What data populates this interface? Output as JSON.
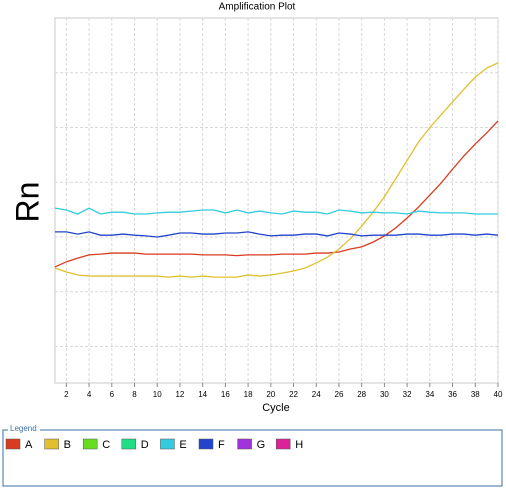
{
  "chart_data": {
    "type": "line",
    "title": "Amplification Plot",
    "x_label": "Cycle",
    "y_label": "Rn",
    "x": [
      1,
      2,
      3,
      4,
      5,
      6,
      7,
      8,
      9,
      10,
      11,
      12,
      13,
      14,
      15,
      16,
      17,
      18,
      19,
      20,
      21,
      22,
      23,
      24,
      25,
      26,
      27,
      28,
      29,
      30,
      31,
      32,
      33,
      34,
      35,
      36,
      37,
      38,
      39,
      40
    ],
    "xlim": [
      1,
      40
    ],
    "xticks": [
      2,
      4,
      6,
      8,
      10,
      12,
      14,
      16,
      18,
      20,
      22,
      24,
      26,
      28,
      30,
      32,
      34,
      36,
      38,
      40
    ],
    "ylim": [
      0,
      100
    ],
    "y_gridlines": [
      10,
      25,
      40,
      55,
      70,
      85
    ],
    "grid": true,
    "legend_title": "Legend",
    "series": [
      {
        "name": "A",
        "color": "#d83b1f",
        "values": [
          31.8,
          33.2,
          34.2,
          35.1,
          35.3,
          35.6,
          35.6,
          35.6,
          35.3,
          35.3,
          35.3,
          35.3,
          35.3,
          35.1,
          35.1,
          35.1,
          34.9,
          35.1,
          35.1,
          35.1,
          35.3,
          35.3,
          35.3,
          35.6,
          35.6,
          35.9,
          36.7,
          37.3,
          38.6,
          40.3,
          42.5,
          45.2,
          48.2,
          51.5,
          54.8,
          58.6,
          62.2,
          65.5,
          68.5,
          71.8
        ]
      },
      {
        "name": "B",
        "color": "#e0c030",
        "values": [
          31.5,
          30.4,
          29.6,
          29.3,
          29.3,
          29.3,
          29.3,
          29.3,
          29.3,
          29.3,
          29.0,
          29.3,
          29.0,
          29.3,
          29.0,
          29.0,
          29.0,
          29.6,
          29.3,
          29.6,
          30.1,
          30.7,
          31.5,
          32.9,
          34.5,
          36.7,
          39.5,
          43.0,
          46.8,
          51.0,
          56.0,
          61.0,
          66.0,
          70.0,
          73.5,
          77.0,
          80.5,
          83.8,
          86.3,
          87.7
        ]
      },
      {
        "name": "C",
        "color": "#66dd22",
        "values": [
          null,
          null,
          null,
          null,
          null,
          null,
          null,
          null,
          null,
          null,
          null,
          null,
          null,
          null,
          null,
          null,
          null,
          null,
          null,
          null,
          null,
          null,
          null,
          null,
          null,
          null,
          null,
          null,
          null,
          null,
          null,
          null,
          null,
          null,
          null,
          null,
          null,
          null,
          null,
          null
        ]
      },
      {
        "name": "D",
        "color": "#22dd88",
        "values": [
          null,
          null,
          null,
          null,
          null,
          null,
          null,
          null,
          null,
          null,
          null,
          null,
          null,
          null,
          null,
          null,
          null,
          null,
          null,
          null,
          null,
          null,
          null,
          null,
          null,
          null,
          null,
          null,
          null,
          null,
          null,
          null,
          null,
          null,
          null,
          null,
          null,
          null,
          null,
          null
        ]
      },
      {
        "name": "E",
        "color": "#33ccdd",
        "values": [
          47.9,
          47.4,
          46.3,
          47.9,
          46.3,
          46.8,
          46.8,
          46.3,
          46.3,
          46.6,
          46.8,
          46.8,
          47.1,
          47.4,
          47.4,
          46.6,
          47.4,
          46.6,
          47.1,
          46.6,
          46.3,
          47.1,
          46.8,
          46.8,
          46.3,
          47.4,
          47.1,
          46.6,
          46.8,
          46.6,
          46.6,
          46.3,
          47.1,
          46.8,
          46.6,
          46.6,
          46.6,
          46.3,
          46.3,
          46.3
        ]
      },
      {
        "name": "F",
        "color": "#2244cc",
        "values": [
          41.4,
          41.4,
          40.8,
          41.4,
          40.5,
          40.5,
          40.8,
          40.5,
          40.3,
          40.0,
          40.5,
          41.1,
          41.1,
          40.8,
          40.8,
          41.1,
          41.1,
          41.4,
          40.8,
          40.3,
          40.5,
          40.5,
          40.8,
          40.8,
          40.3,
          41.1,
          40.8,
          40.3,
          40.5,
          40.5,
          40.5,
          40.8,
          40.8,
          40.5,
          40.5,
          40.8,
          40.8,
          40.5,
          40.8,
          40.5
        ]
      },
      {
        "name": "G",
        "color": "#a033dd",
        "values": [
          null,
          null,
          null,
          null,
          null,
          null,
          null,
          null,
          null,
          null,
          null,
          null,
          null,
          null,
          null,
          null,
          null,
          null,
          null,
          null,
          null,
          null,
          null,
          null,
          null,
          null,
          null,
          null,
          null,
          null,
          null,
          null,
          null,
          null,
          null,
          null,
          null,
          null,
          null,
          null
        ]
      },
      {
        "name": "H",
        "color": "#dd2299",
        "values": [
          null,
          null,
          null,
          null,
          null,
          null,
          null,
          null,
          null,
          null,
          null,
          null,
          null,
          null,
          null,
          null,
          null,
          null,
          null,
          null,
          null,
          null,
          null,
          null,
          null,
          null,
          null,
          null,
          null,
          null,
          null,
          null,
          null,
          null,
          null,
          null,
          null,
          null,
          null,
          null
        ]
      }
    ]
  }
}
